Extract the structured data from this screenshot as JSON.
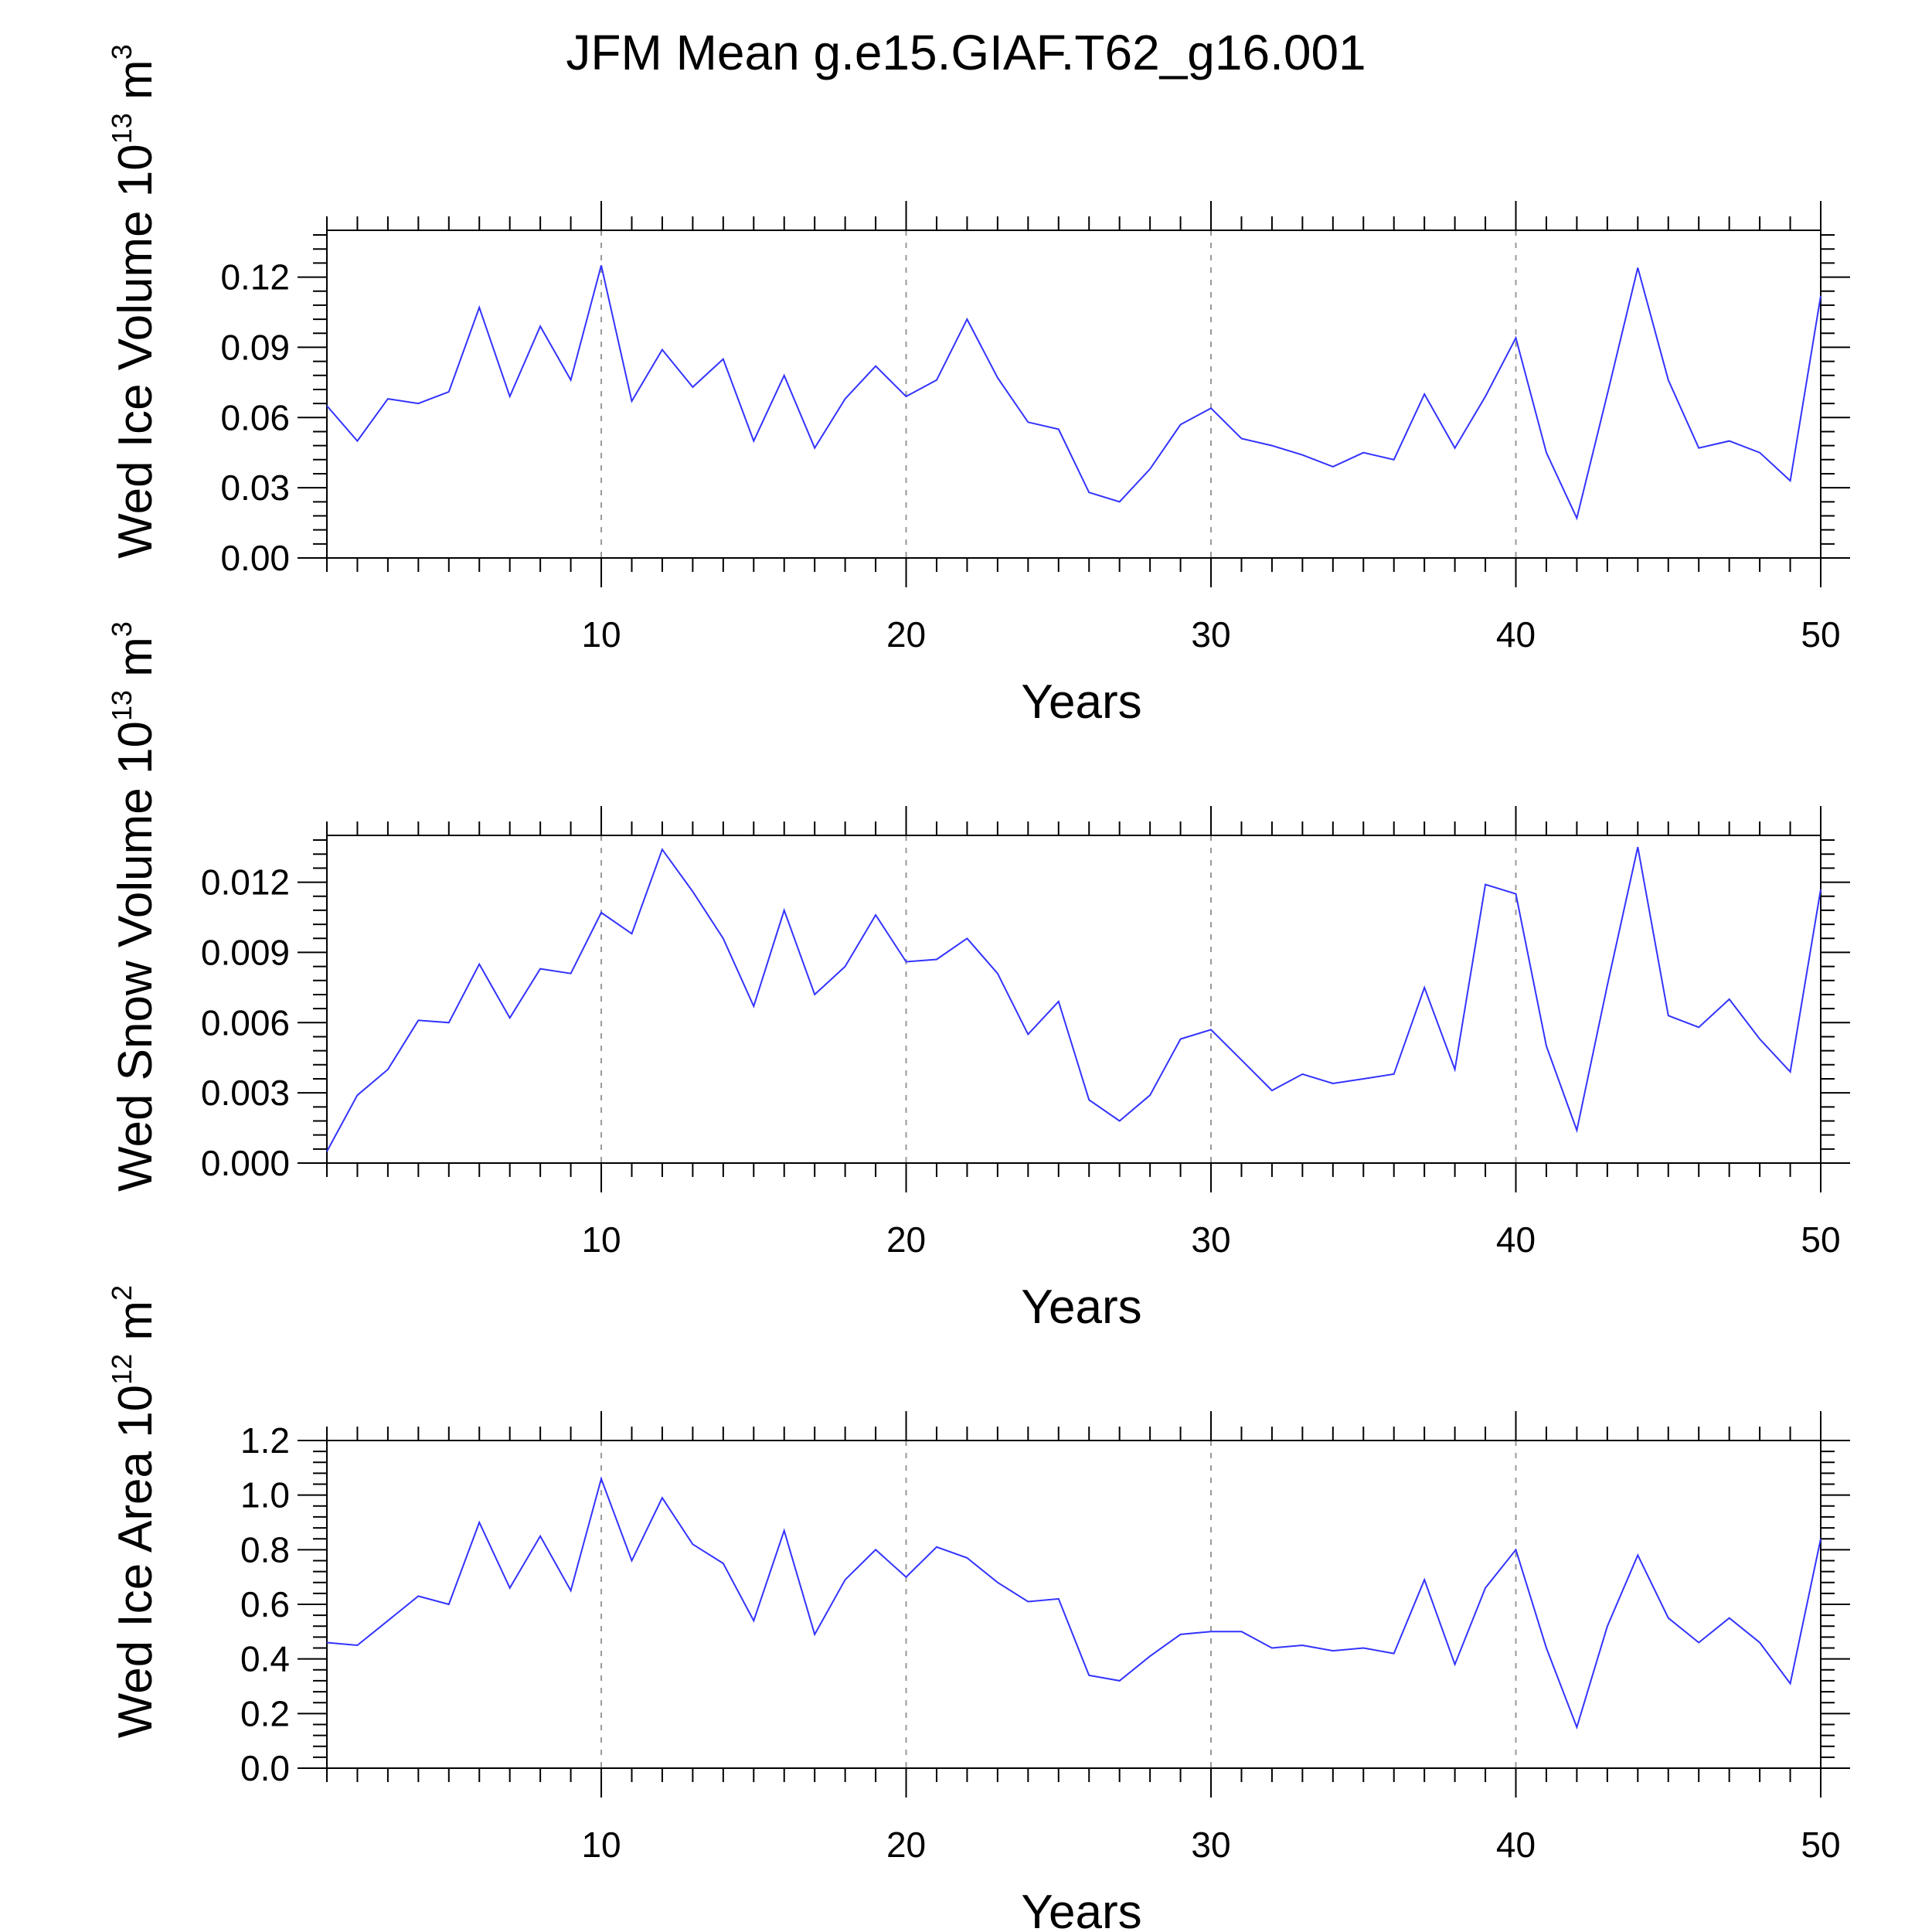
{
  "title": "JFM Mean g.e15.GIAF.T62_g16.001",
  "colors": {
    "line": "#3333ff",
    "frame": "#000000",
    "grid": "#999999",
    "background": "#ffffff"
  },
  "chart_data": [
    {
      "type": "line",
      "ylabel": {
        "prefix": "Wed Ice Volume 10",
        "exponent": "13",
        "unit": " m",
        "unit_exponent": "3"
      },
      "xlabel": "Years",
      "xlim": [
        1,
        50
      ],
      "ylim": [
        0,
        0.14
      ],
      "xticks": [
        10,
        20,
        30,
        40,
        50
      ],
      "xtick_labels": [
        "10",
        "20",
        "30",
        "40",
        "50"
      ],
      "yticks": [
        0,
        0.03,
        0.06,
        0.09,
        0.12
      ],
      "ytick_labels": [
        "0.00",
        "0.03",
        "0.06",
        "0.09",
        "0.12"
      ],
      "grid": "dashed vertical at major x ticks",
      "x": [
        1,
        2,
        3,
        4,
        5,
        6,
        7,
        8,
        9,
        10,
        11,
        12,
        13,
        14,
        15,
        16,
        17,
        18,
        19,
        20,
        21,
        22,
        23,
        24,
        25,
        26,
        27,
        28,
        29,
        30,
        31,
        32,
        33,
        34,
        35,
        36,
        37,
        38,
        39,
        40,
        41,
        42,
        43,
        44,
        45,
        46,
        47,
        48,
        49,
        50
      ],
      "values": [
        0.065,
        0.05,
        0.068,
        0.066,
        0.071,
        0.107,
        0.069,
        0.099,
        0.076,
        0.125,
        0.067,
        0.089,
        0.073,
        0.085,
        0.05,
        0.078,
        0.047,
        0.068,
        0.082,
        0.069,
        0.076,
        0.102,
        0.077,
        0.058,
        0.055,
        0.028,
        0.024,
        0.038,
        0.057,
        0.064,
        0.051,
        0.048,
        0.044,
        0.039,
        0.045,
        0.042,
        0.07,
        0.047,
        0.069,
        0.094,
        0.045,
        0.017,
        0.07,
        0.124,
        0.076,
        0.047,
        0.05,
        0.045,
        0.033,
        0.112
      ]
    },
    {
      "type": "line",
      "ylabel": {
        "prefix": "Wed Snow Volume 10",
        "exponent": "13",
        "unit": " m",
        "unit_exponent": "3"
      },
      "xlabel": "Years",
      "xlim": [
        1,
        50
      ],
      "ylim": [
        0,
        0.014
      ],
      "xticks": [
        10,
        20,
        30,
        40,
        50
      ],
      "xtick_labels": [
        "10",
        "20",
        "30",
        "40",
        "50"
      ],
      "yticks": [
        0,
        0.003,
        0.006,
        0.009,
        0.012
      ],
      "ytick_labels": [
        "0.000",
        "0.003",
        "0.006",
        "0.009",
        "0.012"
      ],
      "grid": "dashed vertical at major x ticks",
      "x": [
        1,
        2,
        3,
        4,
        5,
        6,
        7,
        8,
        9,
        10,
        11,
        12,
        13,
        14,
        15,
        16,
        17,
        18,
        19,
        20,
        21,
        22,
        23,
        24,
        25,
        26,
        27,
        28,
        29,
        30,
        31,
        32,
        33,
        34,
        35,
        36,
        37,
        38,
        39,
        40,
        41,
        42,
        43,
        44,
        45,
        46,
        47,
        48,
        49,
        50
      ],
      "values": [
        0.0005,
        0.0029,
        0.004,
        0.0061,
        0.006,
        0.0085,
        0.0062,
        0.0083,
        0.0081,
        0.0107,
        0.0098,
        0.0134,
        0.0116,
        0.0096,
        0.0067,
        0.0108,
        0.0072,
        0.0084,
        0.0106,
        0.0086,
        0.0087,
        0.0096,
        0.0081,
        0.0055,
        0.0069,
        0.0027,
        0.0018,
        0.0029,
        0.0053,
        0.0057,
        0.0044,
        0.0031,
        0.0038,
        0.0034,
        0.0036,
        0.0038,
        0.0075,
        0.004,
        0.0119,
        0.0115,
        0.005,
        0.0014,
        0.0076,
        0.0135,
        0.0063,
        0.0058,
        0.007,
        0.0053,
        0.0039,
        0.0117
      ]
    },
    {
      "type": "line",
      "ylabel": {
        "prefix": "Wed Ice Area 10",
        "exponent": "12",
        "unit": " m",
        "unit_exponent": "2"
      },
      "xlabel": "Years",
      "xlim": [
        1,
        50
      ],
      "ylim": [
        0,
        1.2
      ],
      "xticks": [
        10,
        20,
        30,
        40,
        50
      ],
      "xtick_labels": [
        "10",
        "20",
        "30",
        "40",
        "50"
      ],
      "yticks": [
        0,
        0.2,
        0.4,
        0.6,
        0.8,
        1.0,
        1.2
      ],
      "ytick_labels": [
        "0.0",
        "0.2",
        "0.4",
        "0.6",
        "0.8",
        "1.0",
        "1.2"
      ],
      "grid": "dashed vertical at major x ticks",
      "x": [
        1,
        2,
        3,
        4,
        5,
        6,
        7,
        8,
        9,
        10,
        11,
        12,
        13,
        14,
        15,
        16,
        17,
        18,
        19,
        20,
        21,
        22,
        23,
        24,
        25,
        26,
        27,
        28,
        29,
        30,
        31,
        32,
        33,
        34,
        35,
        36,
        37,
        38,
        39,
        40,
        41,
        42,
        43,
        44,
        45,
        46,
        47,
        48,
        49,
        50
      ],
      "values": [
        0.46,
        0.45,
        0.54,
        0.63,
        0.6,
        0.9,
        0.66,
        0.85,
        0.65,
        1.06,
        0.76,
        0.99,
        0.82,
        0.75,
        0.54,
        0.87,
        0.49,
        0.69,
        0.8,
        0.7,
        0.81,
        0.77,
        0.68,
        0.61,
        0.62,
        0.34,
        0.32,
        0.41,
        0.49,
        0.5,
        0.5,
        0.44,
        0.45,
        0.43,
        0.44,
        0.42,
        0.69,
        0.38,
        0.66,
        0.8,
        0.44,
        0.15,
        0.52,
        0.78,
        0.55,
        0.46,
        0.55,
        0.46,
        0.31,
        0.84
      ]
    }
  ]
}
